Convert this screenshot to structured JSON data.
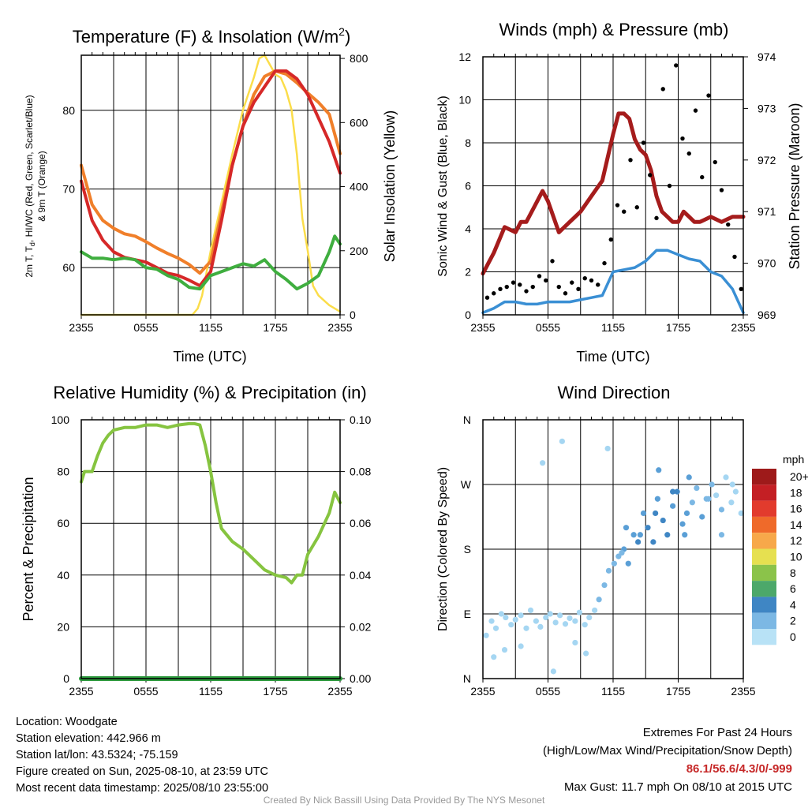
{
  "colors": {
    "red": "#d62828",
    "green": "#3fae3f",
    "orange": "#f07f2a",
    "yellow": "#fbdd4a",
    "black": "#000000",
    "blue": "#3a8fd4",
    "maroon": "#a51c1c",
    "rh": "#86c440",
    "precip": "#2d9a3d",
    "extremes": "#c62828"
  },
  "chart_data": [
    {
      "id": "temp",
      "type": "line",
      "title": "Temperature (F) & Insolation (W/m",
      "title_sup": "2",
      "title_close": ")",
      "ylabel_line1": "2m T, T",
      "ylabel_sub": "d",
      "ylabel_line1_rest": ", HI/WC (Red, Green, Scarlet/Blue)",
      "ylabel_line2": "& 9m T (Orange)",
      "y2label": "Solar Insolation (Yellow)",
      "xlabel": "Time (UTC)",
      "x_ticks": [
        "2355",
        "0555",
        "1155",
        "1755",
        "2355"
      ],
      "xlim": [
        0,
        24
      ],
      "ylim": [
        54,
        87
      ],
      "y_ticks": [
        60,
        70,
        80
      ],
      "y2lim": [
        0,
        810
      ],
      "y2_ticks": [
        0,
        200,
        400,
        600,
        800
      ],
      "series": [
        {
          "color": "yellow",
          "axis": "right",
          "x": [
            0,
            10.3,
            10.8,
            11.2,
            12,
            13,
            14,
            15,
            16,
            16.5,
            17,
            17.5,
            18,
            18.5,
            19,
            19.5,
            20,
            20.5,
            21,
            21.5,
            22,
            23,
            24
          ],
          "y": [
            0,
            0,
            20,
            60,
            200,
            350,
            500,
            640,
            740,
            800,
            810,
            780,
            750,
            740,
            700,
            640,
            500,
            300,
            200,
            90,
            60,
            30,
            10
          ]
        },
        {
          "color": "orange",
          "axis": "left",
          "x": [
            0,
            1,
            2,
            3,
            4,
            5,
            6,
            7,
            8,
            9,
            10,
            11,
            12,
            13,
            14,
            15,
            16,
            17,
            18,
            19,
            20,
            21,
            22,
            23,
            24
          ],
          "y": [
            73,
            68,
            66,
            65,
            64.3,
            64,
            63.3,
            62.5,
            61.8,
            61.2,
            60.4,
            59.3,
            60.8,
            67,
            73,
            78,
            82,
            84.3,
            85,
            84.6,
            83.5,
            82.2,
            81,
            79.5,
            74.5
          ]
        },
        {
          "color": "red",
          "axis": "left",
          "x": [
            0,
            1,
            2,
            3,
            4,
            5,
            6,
            7,
            8,
            9,
            10,
            11,
            12,
            13,
            14,
            15,
            16,
            17,
            17.5,
            18,
            19,
            20,
            21,
            22,
            23,
            24
          ],
          "y": [
            71,
            66,
            63.5,
            62,
            61.3,
            61,
            60.7,
            60,
            59.3,
            59,
            58.4,
            57.7,
            59.5,
            66,
            73,
            78,
            81,
            83,
            84,
            85,
            85,
            84,
            82,
            79,
            76,
            72
          ]
        },
        {
          "color": "green",
          "axis": "left",
          "x": [
            0,
            1,
            2,
            3,
            4,
            5,
            6,
            7,
            8,
            9,
            10,
            11,
            12,
            13,
            14,
            15,
            16,
            17,
            18,
            19,
            20,
            21,
            22,
            23,
            23.5,
            24
          ],
          "y": [
            62,
            61.2,
            61.2,
            61,
            61.2,
            61,
            60,
            59.8,
            59,
            58.5,
            57.5,
            57.3,
            59,
            59.5,
            60,
            60.5,
            60.2,
            61,
            59.5,
            58.5,
            57.3,
            58,
            59,
            62,
            64,
            63
          ]
        }
      ]
    },
    {
      "id": "winds",
      "type": "line",
      "title": "Winds (mph) & Pressure (mb)",
      "ylabel": "Sonic Wind & Gust (Blue, Black)",
      "y2label": "Station Pressure (Maroon)",
      "xlabel": "Time (UTC)",
      "x_ticks": [
        "2355",
        "0555",
        "1155",
        "1755",
        "2355"
      ],
      "xlim": [
        0,
        24
      ],
      "ylim": [
        0,
        12
      ],
      "y_ticks": [
        0,
        2,
        4,
        6,
        8,
        10,
        12
      ],
      "y2lim": [
        969,
        974
      ],
      "y2_ticks": [
        969,
        970,
        971,
        972,
        973,
        974
      ],
      "series": [
        {
          "color": "maroon",
          "axis": "right",
          "x": [
            0,
            0.5,
            1,
            2,
            3,
            3.5,
            4,
            5,
            5.5,
            6,
            7,
            8,
            9,
            10,
            11,
            12,
            12.5,
            13,
            13.5,
            14,
            14.5,
            15,
            15.5,
            16,
            16.5,
            17,
            17.5,
            18,
            18.5,
            19,
            19.5,
            20,
            21,
            22,
            23,
            24
          ],
          "y": [
            969.8,
            970,
            970.2,
            970.7,
            970.6,
            970.8,
            970.8,
            971.2,
            971.4,
            971.2,
            970.6,
            970.8,
            971,
            971.3,
            971.6,
            972.5,
            972.9,
            972.9,
            972.8,
            972.4,
            972.2,
            972.1,
            971.8,
            971.3,
            971,
            970.9,
            970.8,
            970.8,
            971,
            970.9,
            970.8,
            970.8,
            970.9,
            970.8,
            970.9,
            970.9
          ]
        },
        {
          "color": "blue",
          "axis": "left",
          "x": [
            0,
            1,
            2,
            3,
            4,
            5,
            6,
            7,
            8,
            9,
            10,
            11,
            12,
            13,
            14,
            15,
            16,
            17,
            18,
            19,
            20,
            21,
            22,
            23,
            24
          ],
          "y": [
            0.1,
            0.3,
            0.6,
            0.6,
            0.5,
            0.5,
            0.6,
            0.6,
            0.6,
            0.7,
            0.8,
            0.9,
            2.0,
            2.1,
            2.2,
            2.5,
            3.0,
            3.0,
            2.8,
            2.6,
            2.5,
            2.0,
            1.8,
            1.2,
            0.1
          ]
        },
        {
          "color": "black",
          "axis": "left",
          "kind": "scatter",
          "x": [
            0.4,
            1,
            1.6,
            2.2,
            2.8,
            3.4,
            4,
            4.6,
            5.2,
            5.8,
            6.4,
            7,
            7.6,
            8.2,
            8.8,
            9.4,
            10,
            10.6,
            11.2,
            11.8,
            12.4,
            13,
            13.6,
            14.2,
            14.8,
            15.4,
            16,
            16.6,
            17.2,
            17.8,
            18.4,
            19,
            19.6,
            20.2,
            20.8,
            21.4,
            22,
            22.6,
            23.2,
            23.8
          ],
          "y": [
            0.8,
            1.0,
            1.2,
            1.3,
            1.5,
            1.4,
            1.1,
            1.3,
            1.8,
            1.6,
            2.5,
            1.3,
            1.0,
            1.5,
            1.2,
            1.7,
            1.6,
            1.4,
            2.4,
            3.5,
            5.1,
            4.8,
            7.2,
            5.0,
            8.0,
            6.5,
            4.5,
            10.5,
            6.0,
            11.6,
            8.2,
            7.5,
            9.5,
            6.4,
            10.2,
            7.1,
            5.8,
            4.2,
            2.7,
            1.2
          ]
        }
      ]
    },
    {
      "id": "rh",
      "type": "line",
      "title": "Relative Humidity (%) & Precipitation (in)",
      "ylabel": "Percent & Precipitation",
      "x_ticks": [
        "2355",
        "0555",
        "1155",
        "1755",
        "2355"
      ],
      "xlim": [
        0,
        24
      ],
      "ylim": [
        0,
        100
      ],
      "y_ticks": [
        0,
        20,
        40,
        60,
        80,
        100
      ],
      "y2lim": [
        0,
        0.1
      ],
      "y2_ticks": [
        "0.00",
        "0.02",
        "0.04",
        "0.06",
        "0.08",
        "0.10"
      ],
      "series": [
        {
          "color": "rh",
          "axis": "left",
          "x": [
            0,
            0.3,
            1,
            1.5,
            2,
            2.5,
            3,
            4,
            5,
            6,
            7,
            8,
            9,
            10,
            10.5,
            11,
            11.5,
            12,
            12.5,
            13,
            14,
            15,
            16,
            17,
            18,
            19,
            19.5,
            20,
            20.5,
            21,
            22,
            23,
            23.5,
            24
          ],
          "y": [
            76,
            80,
            80,
            86,
            91,
            94,
            96,
            97,
            97,
            98,
            98,
            97,
            98,
            98.5,
            98.5,
            98,
            90,
            80,
            68,
            58,
            53,
            50,
            46,
            42,
            40,
            39,
            37,
            40,
            40,
            48,
            55,
            64,
            72,
            68
          ]
        },
        {
          "color": "precip",
          "axis": "right",
          "x": [
            0,
            24
          ],
          "y": [
            0,
            0
          ]
        }
      ]
    },
    {
      "id": "wdir",
      "type": "scatter",
      "title": "Wind Direction",
      "ylabel": "Direction (Colored By Speed)",
      "x_ticks": [
        "2355",
        "0555",
        "1155",
        "1755",
        "2355"
      ],
      "xlim": [
        0,
        24
      ],
      "ylim": [
        0,
        360
      ],
      "y_ticks": [
        "N",
        "E",
        "S",
        "W",
        "N"
      ],
      "legend_title": "mph",
      "legend_labels": [
        "20+",
        "18",
        "16",
        "14",
        "12",
        "10",
        "8",
        "6",
        "4",
        "2",
        "0"
      ],
      "legend_colors": [
        "#9e1a1a",
        "#c41f24",
        "#e23b2d",
        "#ef6a2a",
        "#f7a84a",
        "#e6e050",
        "#8bc34a",
        "#4ca86a",
        "#3f86c4",
        "#7cb8e4",
        "#b8e2f6"
      ],
      "points_x": [
        0.3,
        0.8,
        1.2,
        1.7,
        2.1,
        2.6,
        3.0,
        3.5,
        4.0,
        4.4,
        4.9,
        5.3,
        5.8,
        6.2,
        6.7,
        7.1,
        7.6,
        8.0,
        8.5,
        8.9,
        9.4,
        9.8,
        10.3,
        10.7,
        11.2,
        11.6,
        12.1,
        12.5,
        13.0,
        13.4,
        13.9,
        14.3,
        14.8,
        15.2,
        15.7,
        16.1,
        16.6,
        17.0,
        17.5,
        17.9,
        18.4,
        18.8,
        19.3,
        19.7,
        20.2,
        20.6,
        21.1,
        21.5,
        22.0,
        22.4,
        22.9,
        23.3,
        23.8,
        5.5,
        7.3,
        11.5,
        2.0,
        1.0,
        6.5,
        9.5,
        16.2,
        17.5,
        19.0,
        14.5,
        12.8,
        22.0,
        3.5,
        8.5,
        13.2,
        15.9,
        18.6,
        20.8,
        23.0
      ],
      "points_y": [
        60,
        80,
        70,
        90,
        85,
        75,
        82,
        88,
        70,
        95,
        80,
        72,
        85,
        90,
        78,
        88,
        76,
        84,
        80,
        92,
        75,
        85,
        95,
        110,
        130,
        150,
        160,
        170,
        180,
        160,
        200,
        190,
        230,
        210,
        190,
        250,
        220,
        200,
        240,
        260,
        215,
        230,
        245,
        265,
        225,
        250,
        270,
        255,
        235,
        280,
        245,
        260,
        230,
        300,
        330,
        320,
        40,
        30,
        10,
        35,
        290,
        260,
        280,
        200,
        175,
        200,
        45,
        50,
        210,
        230,
        200,
        250,
        270
      ],
      "points_speed": [
        1,
        1,
        1,
        1,
        1,
        1,
        1,
        1,
        1,
        1,
        1,
        1,
        1,
        1,
        1,
        1,
        1,
        1,
        1,
        1,
        1,
        1,
        1,
        2,
        2,
        2,
        2,
        2,
        3,
        3,
        3,
        4,
        3,
        4,
        4,
        3,
        5,
        4,
        3,
        4,
        3,
        3,
        2,
        2,
        3,
        2,
        2,
        1,
        2,
        1,
        1,
        1,
        1,
        1,
        1,
        1,
        1,
        1,
        1,
        1,
        3,
        4,
        3,
        3,
        2,
        2,
        1,
        1,
        3,
        4,
        3,
        2,
        1
      ]
    }
  ],
  "info": {
    "location": "Location: Woodgate",
    "elevation": "Station elevation: 442.966 m",
    "latlon": "Station lat/lon: 43.5324; -75.159",
    "created": "Figure created on Sun, 2025-08-10, at 23:59 UTC",
    "recent": "Most recent data timestamp: 2025/08/10 23:55:00"
  },
  "extremes": {
    "title": "Extremes For Past 24 Hours",
    "subtitle": "(High/Low/Max Wind/Precipitation/Snow Depth)",
    "values": "86.1/56.6/4.3/0/-999",
    "gust": "Max Gust: 11.7 mph On 08/10 at 2015 UTC"
  },
  "credit": "Created By Nick Bassill Using Data Provided By The NYS Mesonet"
}
